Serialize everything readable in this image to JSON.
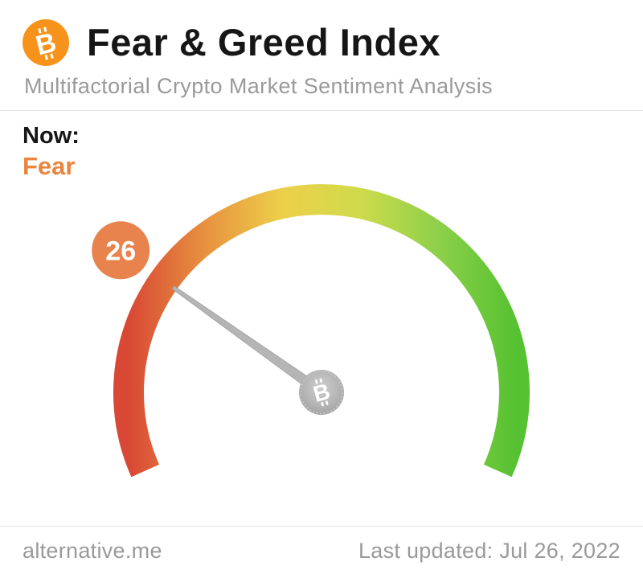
{
  "header": {
    "title": "Fear & Greed Index",
    "subtitle": "Multifactorial Crypto Market Sentiment Analysis",
    "logo_color": "#F7931A"
  },
  "icons": {
    "bitcoin_glyph": "B"
  },
  "status": {
    "label": "Now:",
    "classification": "Fear",
    "classification_color": "#E8853E"
  },
  "chart_data": {
    "type": "gauge",
    "title": "Fear & Greed Index",
    "value": 26,
    "min": 0,
    "max": 100,
    "classification": "Fear",
    "start_angle_deg": 156,
    "sweep_deg": 228,
    "gradient_stops": [
      "#D84835",
      "#E8923F",
      "#EDD04A",
      "#CFDB4C",
      "#8ED04A",
      "#56C231"
    ],
    "badge_color": "#E8834E",
    "needle_color": "#B5B5B5",
    "hub_color": "#B0B0B0"
  },
  "footer": {
    "source": "alternative.me",
    "last_updated": "Last updated: Jul 26, 2022"
  }
}
